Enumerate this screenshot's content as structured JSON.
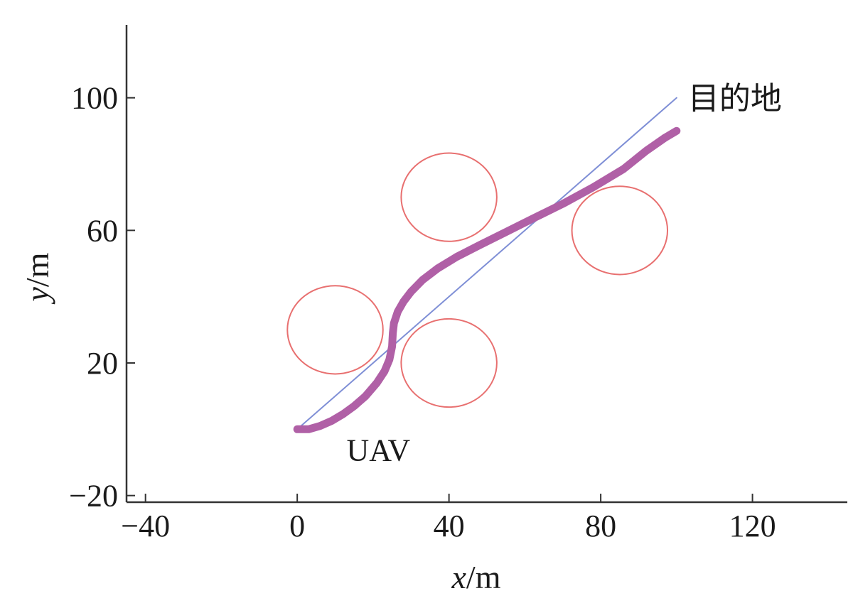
{
  "chart_data": {
    "type": "scatter",
    "xlabel_var": "x",
    "xlabel_unit": "/m",
    "ylabel_var": "y",
    "ylabel_unit": "/m",
    "xlim": [
      -45,
      145
    ],
    "ylim": [
      -22,
      122
    ],
    "xticks": [
      -40,
      0,
      40,
      80,
      120
    ],
    "yticks": [
      -20,
      20,
      60,
      100
    ],
    "grid": false,
    "legend": "none",
    "series": [
      {
        "role": "direct-path",
        "color": "#7f8fd6",
        "points": [
          [
            0,
            0
          ],
          [
            100,
            100
          ]
        ]
      },
      {
        "role": "planned-trajectory",
        "color": "#b060a6",
        "points": [
          [
            0,
            0
          ],
          [
            3,
            0
          ],
          [
            6,
            1
          ],
          [
            9,
            2.5
          ],
          [
            12,
            4.5
          ],
          [
            15,
            7
          ],
          [
            18,
            10
          ],
          [
            21,
            14
          ],
          [
            23,
            17.5
          ],
          [
            24.3,
            21
          ],
          [
            25,
            25
          ],
          [
            25.2,
            29
          ],
          [
            25.5,
            32
          ],
          [
            26.5,
            35.5
          ],
          [
            28,
            38.5
          ],
          [
            30,
            41.5
          ],
          [
            33,
            45
          ],
          [
            37,
            48.5
          ],
          [
            42,
            52
          ],
          [
            48,
            55.5
          ],
          [
            55,
            59.5
          ],
          [
            62,
            63.5
          ],
          [
            70,
            68
          ],
          [
            78,
            73
          ],
          [
            86,
            78.5
          ],
          [
            92,
            84
          ],
          [
            97,
            88
          ],
          [
            100,
            90
          ]
        ]
      }
    ],
    "obstacles": [
      {
        "cx": 10,
        "cy": 30,
        "r": 12,
        "color": "#e87070"
      },
      {
        "cx": 40,
        "cy": 20,
        "r": 12,
        "color": "#e87070"
      },
      {
        "cx": 40,
        "cy": 70,
        "r": 12,
        "color": "#e87070"
      },
      {
        "cx": 85,
        "cy": 60,
        "r": 12,
        "color": "#e87070"
      }
    ],
    "annotations": [
      {
        "text": "UAV",
        "x": 13,
        "y": -6
      },
      {
        "text": "目的地",
        "x": 103,
        "y": 100
      }
    ]
  }
}
